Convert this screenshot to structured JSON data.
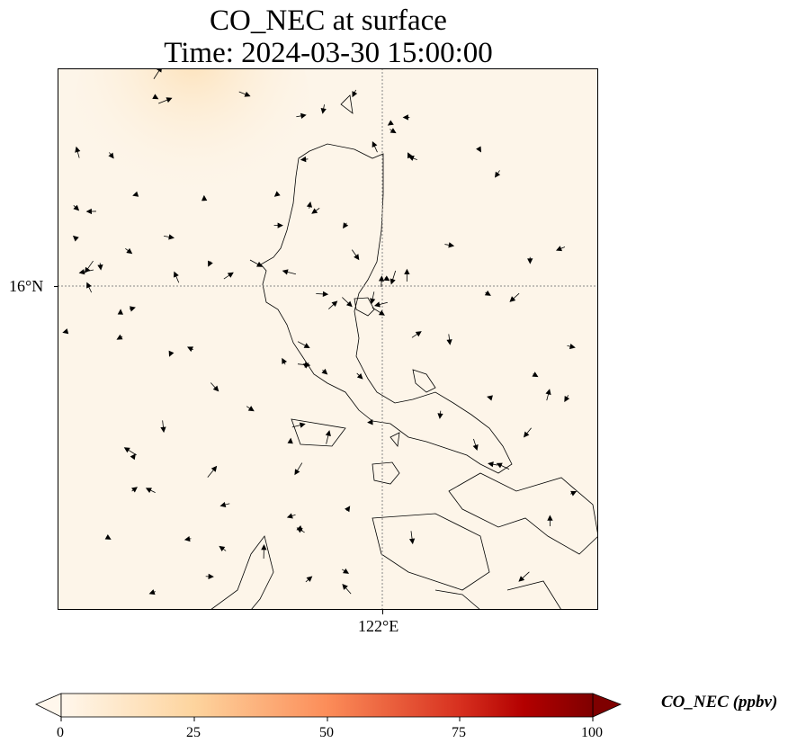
{
  "title": {
    "line1": "CO_NEC at surface",
    "line2": "Time: 2024-03-30 15:00:00"
  },
  "axes": {
    "lat_label": "16°N",
    "lon_label": "122°E"
  },
  "colorbar": {
    "label": "CO_NEC (ppbv)",
    "ticks": [
      "0",
      "25",
      "50",
      "75",
      "100"
    ],
    "min": 0,
    "max": 100,
    "colormap": [
      "#fff7ec",
      "#fdd49e",
      "#fc8d59",
      "#d7301f",
      "#7f0000"
    ]
  },
  "field": {
    "background_value_color": "#fdf5e9",
    "plume_color": "#fde3bd"
  }
}
